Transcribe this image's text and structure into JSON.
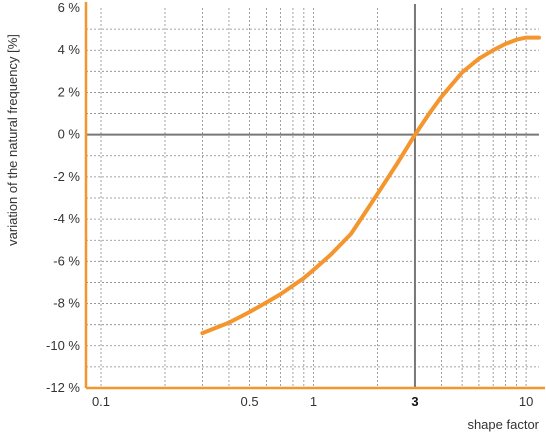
{
  "chart_data": {
    "type": "line",
    "xlabel": "shape factor",
    "ylabel": "variation of the natural frequency [%]",
    "x_scale": "log",
    "xlim": [
      0.085,
      11.5
    ],
    "ylim": [
      -12,
      6
    ],
    "x_ticks": [
      {
        "value": 0.1,
        "label": "0.1",
        "bold": false
      },
      {
        "value": 0.5,
        "label": "0.5",
        "bold": false
      },
      {
        "value": 1,
        "label": "1",
        "bold": false
      },
      {
        "value": 3,
        "label": "3",
        "bold": true
      },
      {
        "value": 10,
        "label": "10",
        "bold": false
      }
    ],
    "y_ticks": [
      {
        "value": 6,
        "label": "6 %"
      },
      {
        "value": 4,
        "label": "4 %"
      },
      {
        "value": 2,
        "label": "2 %"
      },
      {
        "value": 0,
        "label": "0 %"
      },
      {
        "value": -2,
        "label": "-2 %"
      },
      {
        "value": -4,
        "label": "-4 %"
      },
      {
        "value": -6,
        "label": "-6 %"
      },
      {
        "value": -8,
        "label": "-8 %"
      },
      {
        "value": -10,
        "label": "-10 %"
      },
      {
        "value": -12,
        "label": "-12 %"
      }
    ],
    "x_minor_grid": [
      0.2,
      0.3,
      0.4,
      0.6,
      0.7,
      0.8,
      0.9,
      2,
      4,
      5,
      6,
      7,
      8,
      9
    ],
    "reference_lines": {
      "x": 3,
      "y": 0
    },
    "grid": true,
    "series": [
      {
        "color": "#f4952d",
        "x": [
          0.3,
          0.4,
          0.5,
          0.6,
          0.7,
          0.8,
          0.9,
          1,
          1.2,
          1.5,
          1.8,
          2,
          2.5,
          3,
          3.5,
          4,
          5,
          6,
          7,
          8,
          9,
          10,
          11.5
        ],
        "y": [
          -9.4,
          -8.9,
          -8.4,
          -7.95,
          -7.55,
          -7.15,
          -6.8,
          -6.4,
          -5.7,
          -4.7,
          -3.5,
          -2.8,
          -1.3,
          0,
          1.0,
          1.8,
          2.95,
          3.6,
          4.0,
          4.3,
          4.5,
          4.6,
          4.6
        ]
      }
    ]
  },
  "colors": {
    "axis": "#f4952d",
    "reference": "#777777",
    "grid": "#888888",
    "text": "#333333"
  }
}
